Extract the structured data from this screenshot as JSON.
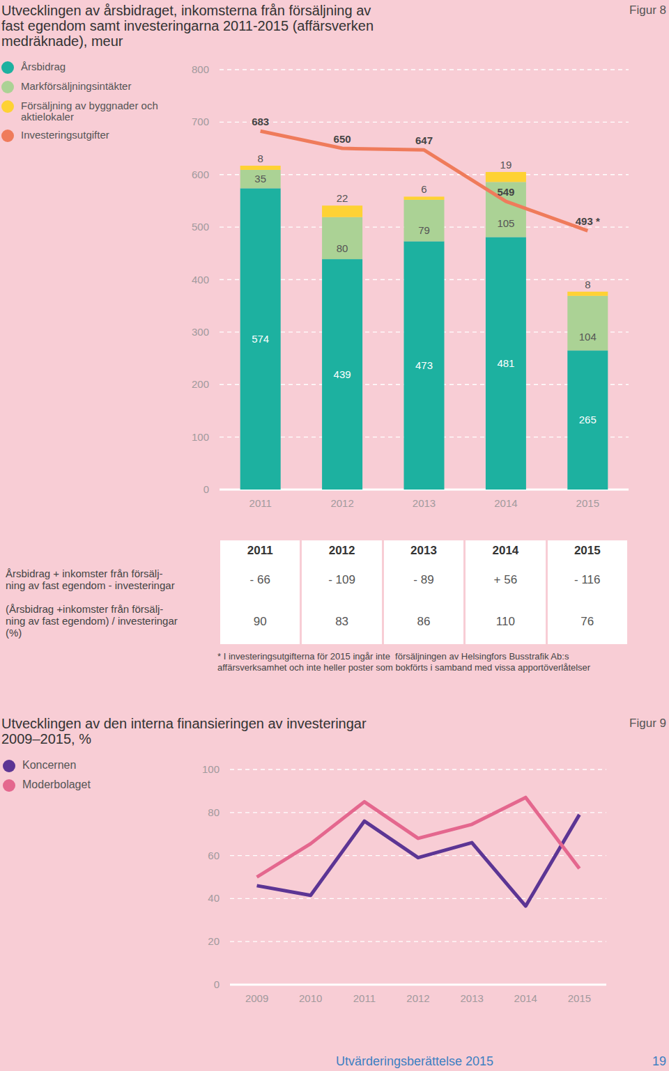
{
  "chart_data": [
    {
      "type": "bar",
      "title": "Utvecklingen av årsbidraget, inkomsterna från försäljning av\nfast egendom samt investeringarna 2011-2015 (affärsverken\nmedräknade), meur",
      "figure_label": "Figur 8",
      "categories": [
        "2011",
        "2012",
        "2013",
        "2014",
        "2015"
      ],
      "series": [
        {
          "name": "Årsbidrag",
          "color": "#1db1a0",
          "values": [
            574,
            439,
            473,
            481,
            265
          ]
        },
        {
          "name": "Markförsäljningsintäkter",
          "color": "#abd295",
          "values": [
            35,
            80,
            79,
            105,
            104
          ]
        },
        {
          "name": "Försäljning av byggnader och aktielokaler",
          "color": "#fed234",
          "values": [
            8,
            22,
            6,
            19,
            8
          ]
        },
        {
          "name": "Investeringsutgifter",
          "type": "line",
          "color": "#ef7b5b",
          "values": [
            683,
            650,
            647,
            549,
            493
          ],
          "value_labels": [
            "683",
            "650",
            "647",
            "549",
            "493 *"
          ]
        }
      ],
      "stacked": true,
      "data_labels": true,
      "ylim": [
        0,
        800
      ],
      "yticks": [
        0,
        100,
        200,
        300,
        400,
        500,
        600,
        700,
        800
      ],
      "grid": true,
      "legend": "top-left"
    },
    {
      "type": "line",
      "title": "Utvecklingen av den interna finansieringen av investeringar\n2009–2015, %",
      "figure_label": "Figur 9",
      "categories": [
        "2009",
        "2010",
        "2011",
        "2012",
        "2013",
        "2014",
        "2015"
      ],
      "series": [
        {
          "name": "Koncernen",
          "color": "#5c3594",
          "values": [
            46,
            41.5,
            76,
            59,
            66,
            36.5,
            79
          ]
        },
        {
          "name": "Moderbolaget",
          "color": "#e4678e",
          "values": [
            50,
            65.5,
            85,
            68,
            74.5,
            87,
            54
          ]
        }
      ],
      "ylim": [
        0,
        100
      ],
      "yticks": [
        0,
        20,
        40,
        60,
        80,
        100
      ],
      "grid": true,
      "legend": "top-left"
    }
  ],
  "table": {
    "columns": [
      "2011",
      "2012",
      "2013",
      "2014",
      "2015"
    ],
    "rows": [
      {
        "label": [
          "Årsbidrag + inkomster från försälj-",
          "ning av fast egendom - investeringar"
        ],
        "cells": [
          "- 66",
          "- 109",
          "- 89",
          "+ 56",
          "- 116"
        ]
      },
      {
        "label": [
          "(Årsbidrag +inkomster från försälj-",
          "ning av fast egendom) / investeringar",
          "(%)"
        ],
        "cells": [
          90,
          83,
          86,
          110,
          76
        ]
      }
    ]
  },
  "footnote": [
    "* I investeringsutgifterna för 2015 ingår inte  försäljningen av Helsingfors Busstrafik Ab:s",
    "affärsverksamhet och inte heller poster som bokförts i samband med vissa apportöverlåtelser"
  ],
  "footer": {
    "text": "Utvärderingsberättelse 2015",
    "page": 19
  }
}
